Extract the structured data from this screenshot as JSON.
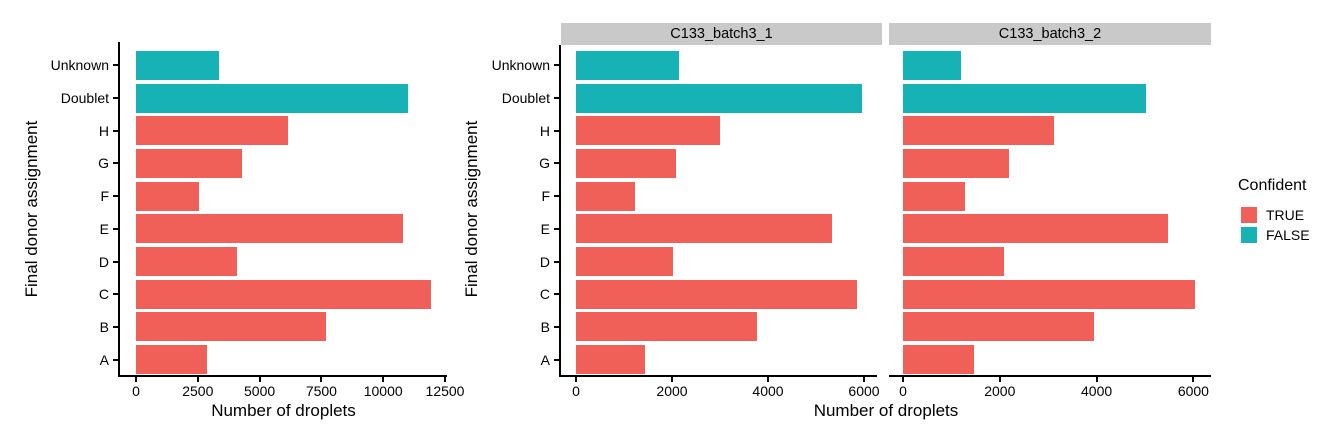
{
  "chart_data": {
    "type": "bar",
    "orientation": "horizontal",
    "title": "",
    "xlabel": "Number of droplets",
    "ylabel": "Final donor assignment",
    "grid": false,
    "facet_strip_bg": "#C9C9C9",
    "categories_top_to_bottom": [
      "Unknown",
      "Doublet",
      "H",
      "G",
      "F",
      "E",
      "D",
      "C",
      "B",
      "A"
    ],
    "category_confident": [
      false,
      false,
      true,
      true,
      true,
      true,
      true,
      true,
      true,
      true
    ],
    "legend": {
      "title": "Confident",
      "position": "right",
      "entries": [
        {
          "label": "TRUE",
          "color": "#F15F59"
        },
        {
          "label": "FALSE",
          "color": "#16B2B5"
        }
      ]
    },
    "panels": [
      {
        "name": "",
        "has_strip": false,
        "xlim": [
          0,
          12500
        ],
        "xticks": [
          0,
          2500,
          5000,
          7500,
          10000,
          12500
        ],
        "values": [
          3340,
          10990,
          6150,
          4280,
          2530,
          10810,
          4090,
          11920,
          7700,
          2880
        ]
      },
      {
        "name": "C133_batch3_1",
        "has_strip": true,
        "xlim": [
          0,
          6000
        ],
        "xticks": [
          0,
          2000,
          4000,
          6000
        ],
        "values": [
          2150,
          5950,
          3000,
          2080,
          1230,
          5330,
          2030,
          5850,
          3780,
          1440
        ]
      },
      {
        "name": "C133_batch3_2",
        "has_strip": true,
        "xlim": [
          0,
          6000
        ],
        "xticks": [
          0,
          2000,
          4000,
          6000
        ],
        "values": [
          1190,
          5020,
          3110,
          2190,
          1290,
          5470,
          2090,
          6040,
          3940,
          1470
        ]
      }
    ]
  }
}
